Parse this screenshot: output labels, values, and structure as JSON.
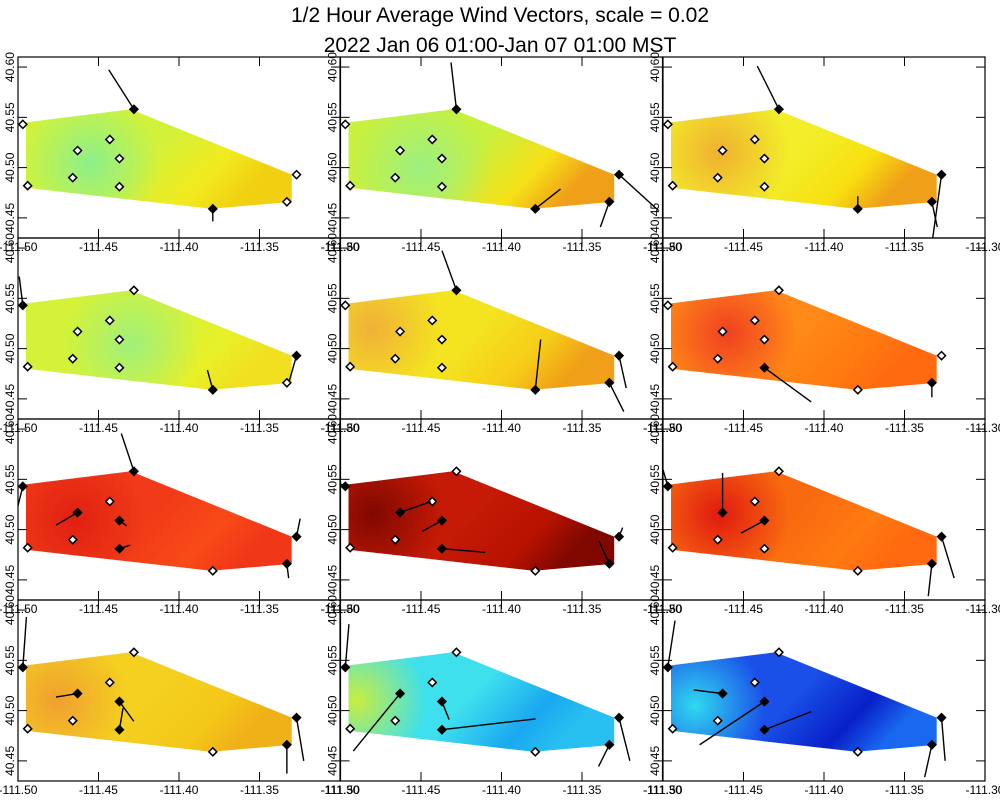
{
  "chart_data": {
    "type": "heatmap",
    "title": "1/2 Hour Average Wind Vectors, scale =  0.02",
    "subtitle": "2022 Jan 06 01:00-Jan 07 01:00 MST",
    "xlim": [
      -111.5,
      -111.3
    ],
    "ylim": [
      40.43,
      40.61
    ],
    "x_tick_labels": [
      "-111.50",
      "-111.45",
      "-111.40",
      "-111.35",
      "-111.30"
    ],
    "y_tick_labels": [
      "40.45",
      "40.50",
      "40.55",
      "40.60"
    ],
    "grid": false,
    "n_rows": 4,
    "n_cols": 3,
    "domain_polygon": [
      [
        -111.495,
        40.545
      ],
      [
        -111.43,
        40.558
      ],
      [
        -111.33,
        40.493
      ],
      [
        -111.33,
        40.466
      ],
      [
        -111.38,
        40.459
      ],
      [
        -111.495,
        40.48
      ]
    ],
    "stations": [
      {
        "id": "s1",
        "lon": -111.497,
        "lat": 40.543
      },
      {
        "id": "s2",
        "lon": -111.494,
        "lat": 40.482
      },
      {
        "id": "s3",
        "lon": -111.463,
        "lat": 40.517
      },
      {
        "id": "s4",
        "lon": -111.466,
        "lat": 40.49
      },
      {
        "id": "s5",
        "lon": -111.443,
        "lat": 40.528
      },
      {
        "id": "s6",
        "lon": -111.437,
        "lat": 40.509
      },
      {
        "id": "s7",
        "lon": -111.437,
        "lat": 40.481
      },
      {
        "id": "s8",
        "lon": -111.428,
        "lat": 40.558
      },
      {
        "id": "s9",
        "lon": -111.379,
        "lat": 40.459
      },
      {
        "id": "s10",
        "lon": -111.333,
        "lat": 40.466
      },
      {
        "id": "s11",
        "lon": -111.327,
        "lat": 40.493
      }
    ],
    "panels": [
      {
        "row": 0,
        "col": 0,
        "field": {
          "base": "#d2f23a",
          "hot": [
            -111.455,
            40.505,
            "#8cf08a"
          ],
          "side": "#f2ea1e",
          "corner": "#f0d010"
        },
        "vectors": [
          {
            "s": "s8",
            "u": -0.7,
            "v": 1.1
          },
          {
            "s": "s9",
            "u": 0.0,
            "v": -0.35
          }
        ]
      },
      {
        "row": 0,
        "col": 1,
        "field": {
          "base": "#c8f03e",
          "hot": [
            -111.45,
            40.5,
            "#9cf082"
          ],
          "side": "#f6e018",
          "corner": "#f0a018"
        },
        "vectors": [
          {
            "s": "s8",
            "u": -0.15,
            "v": 1.3
          },
          {
            "s": "s9",
            "u": 0.7,
            "v": 0.55
          },
          {
            "s": "s10",
            "u": -0.25,
            "v": -0.7
          },
          {
            "s": "s11",
            "u": 1.1,
            "v": -1.0
          }
        ]
      },
      {
        "row": 0,
        "col": 2,
        "field": {
          "base": "#f2ee2a",
          "hot": [
            -111.465,
            40.515,
            "#f0b030"
          ],
          "side": "#f8e010",
          "corner": "#f0a018"
        },
        "vectors": [
          {
            "s": "s8",
            "u": -0.6,
            "v": 1.2
          },
          {
            "s": "s9",
            "u": 0.0,
            "v": 0.35
          },
          {
            "s": "s10",
            "u": 0.15,
            "v": -0.7
          },
          {
            "s": "s11",
            "u": -0.25,
            "v": -1.8
          }
        ]
      },
      {
        "row": 1,
        "col": 0,
        "field": {
          "base": "#d6f238",
          "hot": [
            -111.43,
            40.505,
            "#a0f07a"
          ],
          "side": "#e8f028",
          "corner": "#f0e020"
        },
        "vectors": [
          {
            "s": "s1",
            "u": -0.1,
            "v": 0.8
          },
          {
            "s": "s9",
            "u": -0.15,
            "v": 0.55
          },
          {
            "s": "s11",
            "u": -0.2,
            "v": -0.7
          }
        ]
      },
      {
        "row": 1,
        "col": 1,
        "field": {
          "base": "#f4e420",
          "hot": [
            -111.48,
            40.52,
            "#f0b038"
          ],
          "side": "#f6cc18",
          "corner": "#f0a018"
        },
        "vectors": [
          {
            "s": "s8",
            "u": -0.4,
            "v": 1.1
          },
          {
            "s": "s9",
            "u": 0.15,
            "v": 1.4
          },
          {
            "s": "s10",
            "u": 0.4,
            "v": -0.8
          },
          {
            "s": "s11",
            "u": 0.2,
            "v": -0.9
          }
        ]
      },
      {
        "row": 1,
        "col": 2,
        "field": {
          "base": "#ff8a18",
          "hot": [
            -111.46,
            40.515,
            "#f04020"
          ],
          "side": "#ff7a10",
          "corner": "#ff6a10"
        },
        "vectors": [
          {
            "s": "s7",
            "u": 1.3,
            "v": -0.95
          },
          {
            "s": "s10",
            "u": 0.0,
            "v": -0.4
          }
        ]
      },
      {
        "row": 2,
        "col": 0,
        "field": {
          "base": "#f03a18",
          "hot": [
            -111.465,
            40.51,
            "#e02010"
          ],
          "side": "#f84a18",
          "corner": "#f03818"
        },
        "vectors": [
          {
            "s": "s1",
            "u": -0.15,
            "v": -0.6
          },
          {
            "s": "s3",
            "u": -0.6,
            "v": -0.35
          },
          {
            "s": "s6",
            "u": 0.2,
            "v": -0.15
          },
          {
            "s": "s7",
            "u": 0.3,
            "v": 0.1
          },
          {
            "s": "s8",
            "u": -0.35,
            "v": 1.05
          },
          {
            "s": "s10",
            "u": 0.05,
            "v": -0.4
          },
          {
            "s": "s11",
            "u": 0.1,
            "v": 0.5
          }
        ]
      },
      {
        "row": 2,
        "col": 1,
        "field": {
          "base": "#c41a06",
          "hot": [
            -111.48,
            40.515,
            "#800800"
          ],
          "side": "#b81200",
          "corner": "#800800"
        },
        "vectors": [
          {
            "s": "s1",
            "u": -0.6,
            "v": 0.3
          },
          {
            "s": "s3",
            "u": 0.85,
            "v": 0.3
          },
          {
            "s": "s6",
            "u": -0.55,
            "v": -0.3
          },
          {
            "s": "s7",
            "u": 1.2,
            "v": -0.1
          },
          {
            "s": "s10",
            "u": -0.3,
            "v": 0.65
          },
          {
            "s": "s11",
            "u": 0.1,
            "v": 0.25
          }
        ]
      },
      {
        "row": 2,
        "col": 2,
        "field": {
          "base": "#f86a10",
          "hot": [
            -111.465,
            40.515,
            "#e01a10"
          ],
          "side": "#ff7a10",
          "corner": "#ff6a10"
        },
        "vectors": [
          {
            "s": "s1",
            "u": -0.35,
            "v": 1.2
          },
          {
            "s": "s3",
            "u": 0.0,
            "v": 1.1
          },
          {
            "s": "s6",
            "u": -0.65,
            "v": -0.35
          },
          {
            "s": "s10",
            "u": -0.1,
            "v": -0.9
          },
          {
            "s": "s11",
            "u": 0.35,
            "v": -1.15
          }
        ]
      },
      {
        "row": 3,
        "col": 0,
        "field": {
          "base": "#f4d020",
          "hot": [
            -111.475,
            40.51,
            "#f0a030"
          ],
          "side": "#f4c818",
          "corner": "#f0b018"
        },
        "vectors": [
          {
            "s": "s1",
            "u": 0.1,
            "v": 1.4
          },
          {
            "s": "s3",
            "u": -0.6,
            "v": -0.1
          },
          {
            "s": "s6",
            "u": 0.4,
            "v": -0.55
          },
          {
            "s": "s7",
            "u": 0.1,
            "v": 0.6
          },
          {
            "s": "s10",
            "u": 0.0,
            "v": -0.8
          },
          {
            "s": "s11",
            "u": 0.2,
            "v": -1.2
          }
        ]
      },
      {
        "row": 3,
        "col": 1,
        "field": {
          "base": "#3ee0ee",
          "hot": [
            -111.49,
            40.51,
            "#c8ee40"
          ],
          "side": "#1aa8f0",
          "corner": "#28c0f0"
        },
        "vectors": [
          {
            "s": "s1",
            "u": 0.1,
            "v": 1.2
          },
          {
            "s": "s3",
            "u": -1.3,
            "v": -1.6
          },
          {
            "s": "s6",
            "u": 0.2,
            "v": -0.5
          },
          {
            "s": "s7",
            "u": 2.6,
            "v": 0.3
          },
          {
            "s": "s10",
            "u": -0.3,
            "v": -0.6
          },
          {
            "s": "s11",
            "u": 0.3,
            "v": -1.2
          }
        ]
      },
      {
        "row": 3,
        "col": 2,
        "field": {
          "base": "#1a50e8",
          "hot": [
            -111.48,
            40.505,
            "#30d8f0"
          ],
          "side": "#0820c8",
          "corner": "#1a68f0"
        },
        "vectors": [
          {
            "s": "s1",
            "u": 0.2,
            "v": 1.3
          },
          {
            "s": "s3",
            "u": -0.8,
            "v": 0.1
          },
          {
            "s": "s6",
            "u": -1.8,
            "v": -1.2
          },
          {
            "s": "s7",
            "u": 1.3,
            "v": 0.5
          },
          {
            "s": "s10",
            "u": -0.2,
            "v": -0.9
          },
          {
            "s": "s11",
            "u": 0.1,
            "v": -1.2
          }
        ]
      }
    ]
  }
}
